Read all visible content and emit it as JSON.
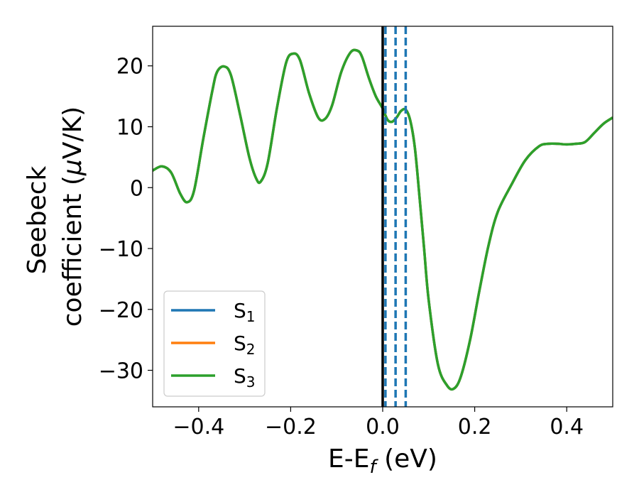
{
  "chart_data": {
    "type": "line",
    "xlabel": "E-E$_f$ (eV)",
    "xlabel_parts": {
      "main": "E-E",
      "sub": "f",
      "suffix": " (eV)"
    },
    "ylabel_line1": "Seebeck",
    "ylabel_line2_text": "coefficient  (",
    "ylabel_line2_mu": "μ",
    "ylabel_line2_unit": "V/K)",
    "xlim": [
      -0.5,
      0.5
    ],
    "ylim": [
      -36,
      26.5
    ],
    "xticks": [
      -0.4,
      -0.2,
      0.0,
      0.2,
      0.4
    ],
    "xtick_labels": [
      "−0.4",
      "−0.2",
      "0.0",
      "0.2",
      "0.4"
    ],
    "yticks": [
      -30,
      -20,
      -10,
      0,
      10,
      20
    ],
    "ytick_labels": [
      "−30",
      "−20",
      "−10",
      "0",
      "10",
      "20"
    ],
    "grid": false,
    "legend_position": "lower-left",
    "colors": {
      "S1": "#1f77b4",
      "S2": "#ff7f0e",
      "S3": "#2ca02c",
      "fermi": "#000000",
      "markers": "#1f77b4"
    },
    "legend": [
      {
        "base": "S",
        "sub": "1",
        "color": "#1f77b4"
      },
      {
        "base": "S",
        "sub": "2",
        "color": "#ff7f0e"
      },
      {
        "base": "S",
        "sub": "3",
        "color": "#2ca02c"
      }
    ],
    "vertical_lines": {
      "solid": [
        0.0
      ],
      "dashed": [
        0.006,
        0.028,
        0.05
      ]
    },
    "series": [
      {
        "name": "S$_1$",
        "color": "#1f77b4",
        "ref": "curve"
      },
      {
        "name": "S$_2$",
        "color": "#ff7f0e",
        "ref": "curve"
      },
      {
        "name": "S$_3$",
        "color": "#2ca02c",
        "ref": "curve"
      }
    ],
    "curve": {
      "x": [
        -0.5,
        -0.48,
        -0.46,
        -0.44,
        -0.425,
        -0.41,
        -0.39,
        -0.37,
        -0.36,
        -0.345,
        -0.33,
        -0.31,
        -0.29,
        -0.275,
        -0.265,
        -0.25,
        -0.23,
        -0.21,
        -0.195,
        -0.18,
        -0.16,
        -0.14,
        -0.125,
        -0.11,
        -0.09,
        -0.07,
        -0.055,
        -0.045,
        -0.03,
        -0.015,
        0.0,
        0.01,
        0.02,
        0.03,
        0.04,
        0.05,
        0.06,
        0.07,
        0.08,
        0.09,
        0.1,
        0.12,
        0.14,
        0.155,
        0.17,
        0.19,
        0.21,
        0.23,
        0.25,
        0.28,
        0.31,
        0.34,
        0.36,
        0.38,
        0.4,
        0.42,
        0.44,
        0.46,
        0.48,
        0.5
      ],
      "y": [
        2.8,
        3.5,
        2.5,
        -1.0,
        -2.4,
        -0.5,
        8.0,
        16.0,
        19.0,
        19.9,
        18.5,
        12.0,
        5.0,
        1.5,
        1.0,
        4.0,
        13.0,
        20.5,
        22.0,
        21.0,
        15.5,
        11.5,
        11.3,
        13.5,
        19.0,
        22.2,
        22.5,
        21.5,
        18.0,
        15.0,
        13.0,
        11.2,
        10.8,
        11.5,
        12.6,
        12.8,
        11.0,
        6.5,
        -1.5,
        -10.0,
        -18.5,
        -29.0,
        -32.5,
        -33.0,
        -31.0,
        -25.0,
        -17.0,
        -9.5,
        -4.0,
        0.5,
        4.5,
        6.8,
        7.2,
        7.2,
        7.1,
        7.2,
        7.5,
        9.0,
        10.5,
        11.5
      ]
    }
  }
}
